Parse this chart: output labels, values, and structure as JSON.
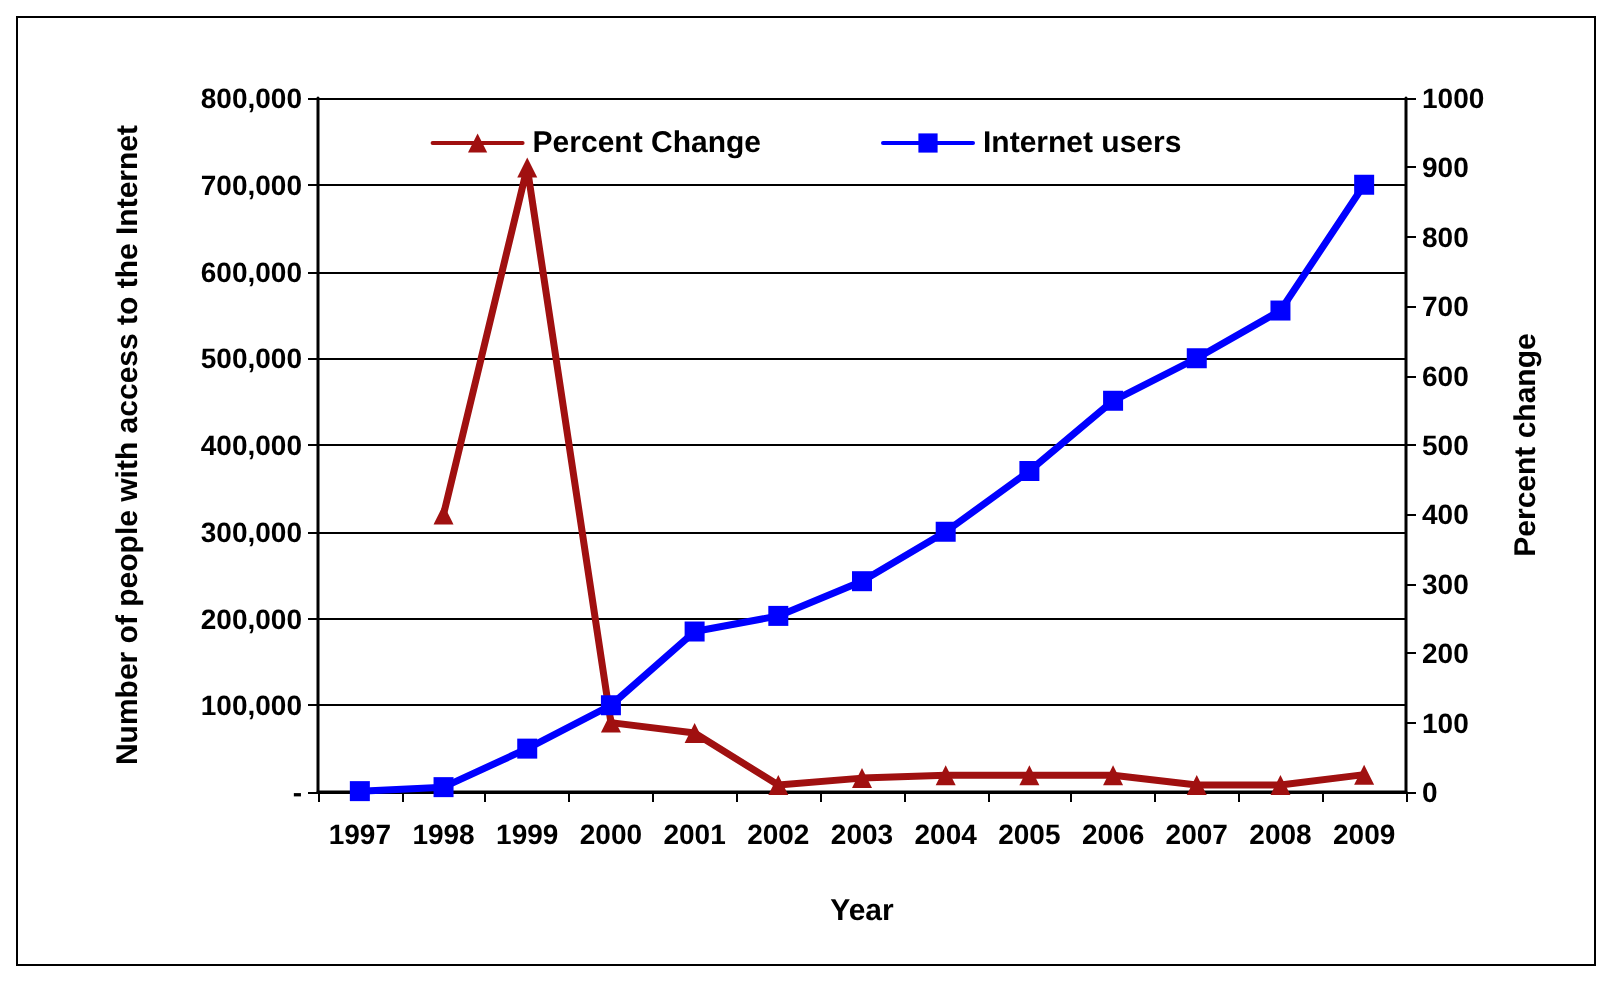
{
  "chart_data": {
    "type": "line",
    "xlabel": "Year",
    "ylabel": "Number of people with access to the Internet",
    "y2label": "Percent change",
    "categories": [
      "1997",
      "1998",
      "1999",
      "2000",
      "2001",
      "2002",
      "2003",
      "2004",
      "2005",
      "2006",
      "2007",
      "2008",
      "2009"
    ],
    "series": [
      {
        "name": "Percent Change",
        "color": "#a01010",
        "axis": "y2",
        "marker": "triangle",
        "values": [
          null,
          400,
          900,
          100,
          85,
          10,
          20,
          24,
          24,
          24,
          10,
          10,
          25
        ]
      },
      {
        "name": "Internet users",
        "color": "#0000ff",
        "axis": "y",
        "marker": "square",
        "values": [
          1000,
          5600,
          50000,
          100000,
          185000,
          203000,
          243000,
          300000,
          370000,
          451000,
          500000,
          555000,
          700000
        ]
      }
    ],
    "ylim": [
      0,
      800000
    ],
    "yticks": [
      {
        "value": 0,
        "label": "-"
      },
      {
        "value": 100000,
        "label": "100,000"
      },
      {
        "value": 200000,
        "label": "200,000"
      },
      {
        "value": 300000,
        "label": "300,000"
      },
      {
        "value": 400000,
        "label": "400,000"
      },
      {
        "value": 500000,
        "label": "500,000"
      },
      {
        "value": 600000,
        "label": "600,000"
      },
      {
        "value": 700000,
        "label": "700,000"
      },
      {
        "value": 800000,
        "label": "800,000"
      }
    ],
    "y2lim": [
      0,
      1000
    ],
    "y2ticks": [
      0,
      100,
      200,
      300,
      400,
      500,
      600,
      700,
      800,
      900,
      1000
    ],
    "grid": "y",
    "legend": "top",
    "line_style": "solid"
  }
}
